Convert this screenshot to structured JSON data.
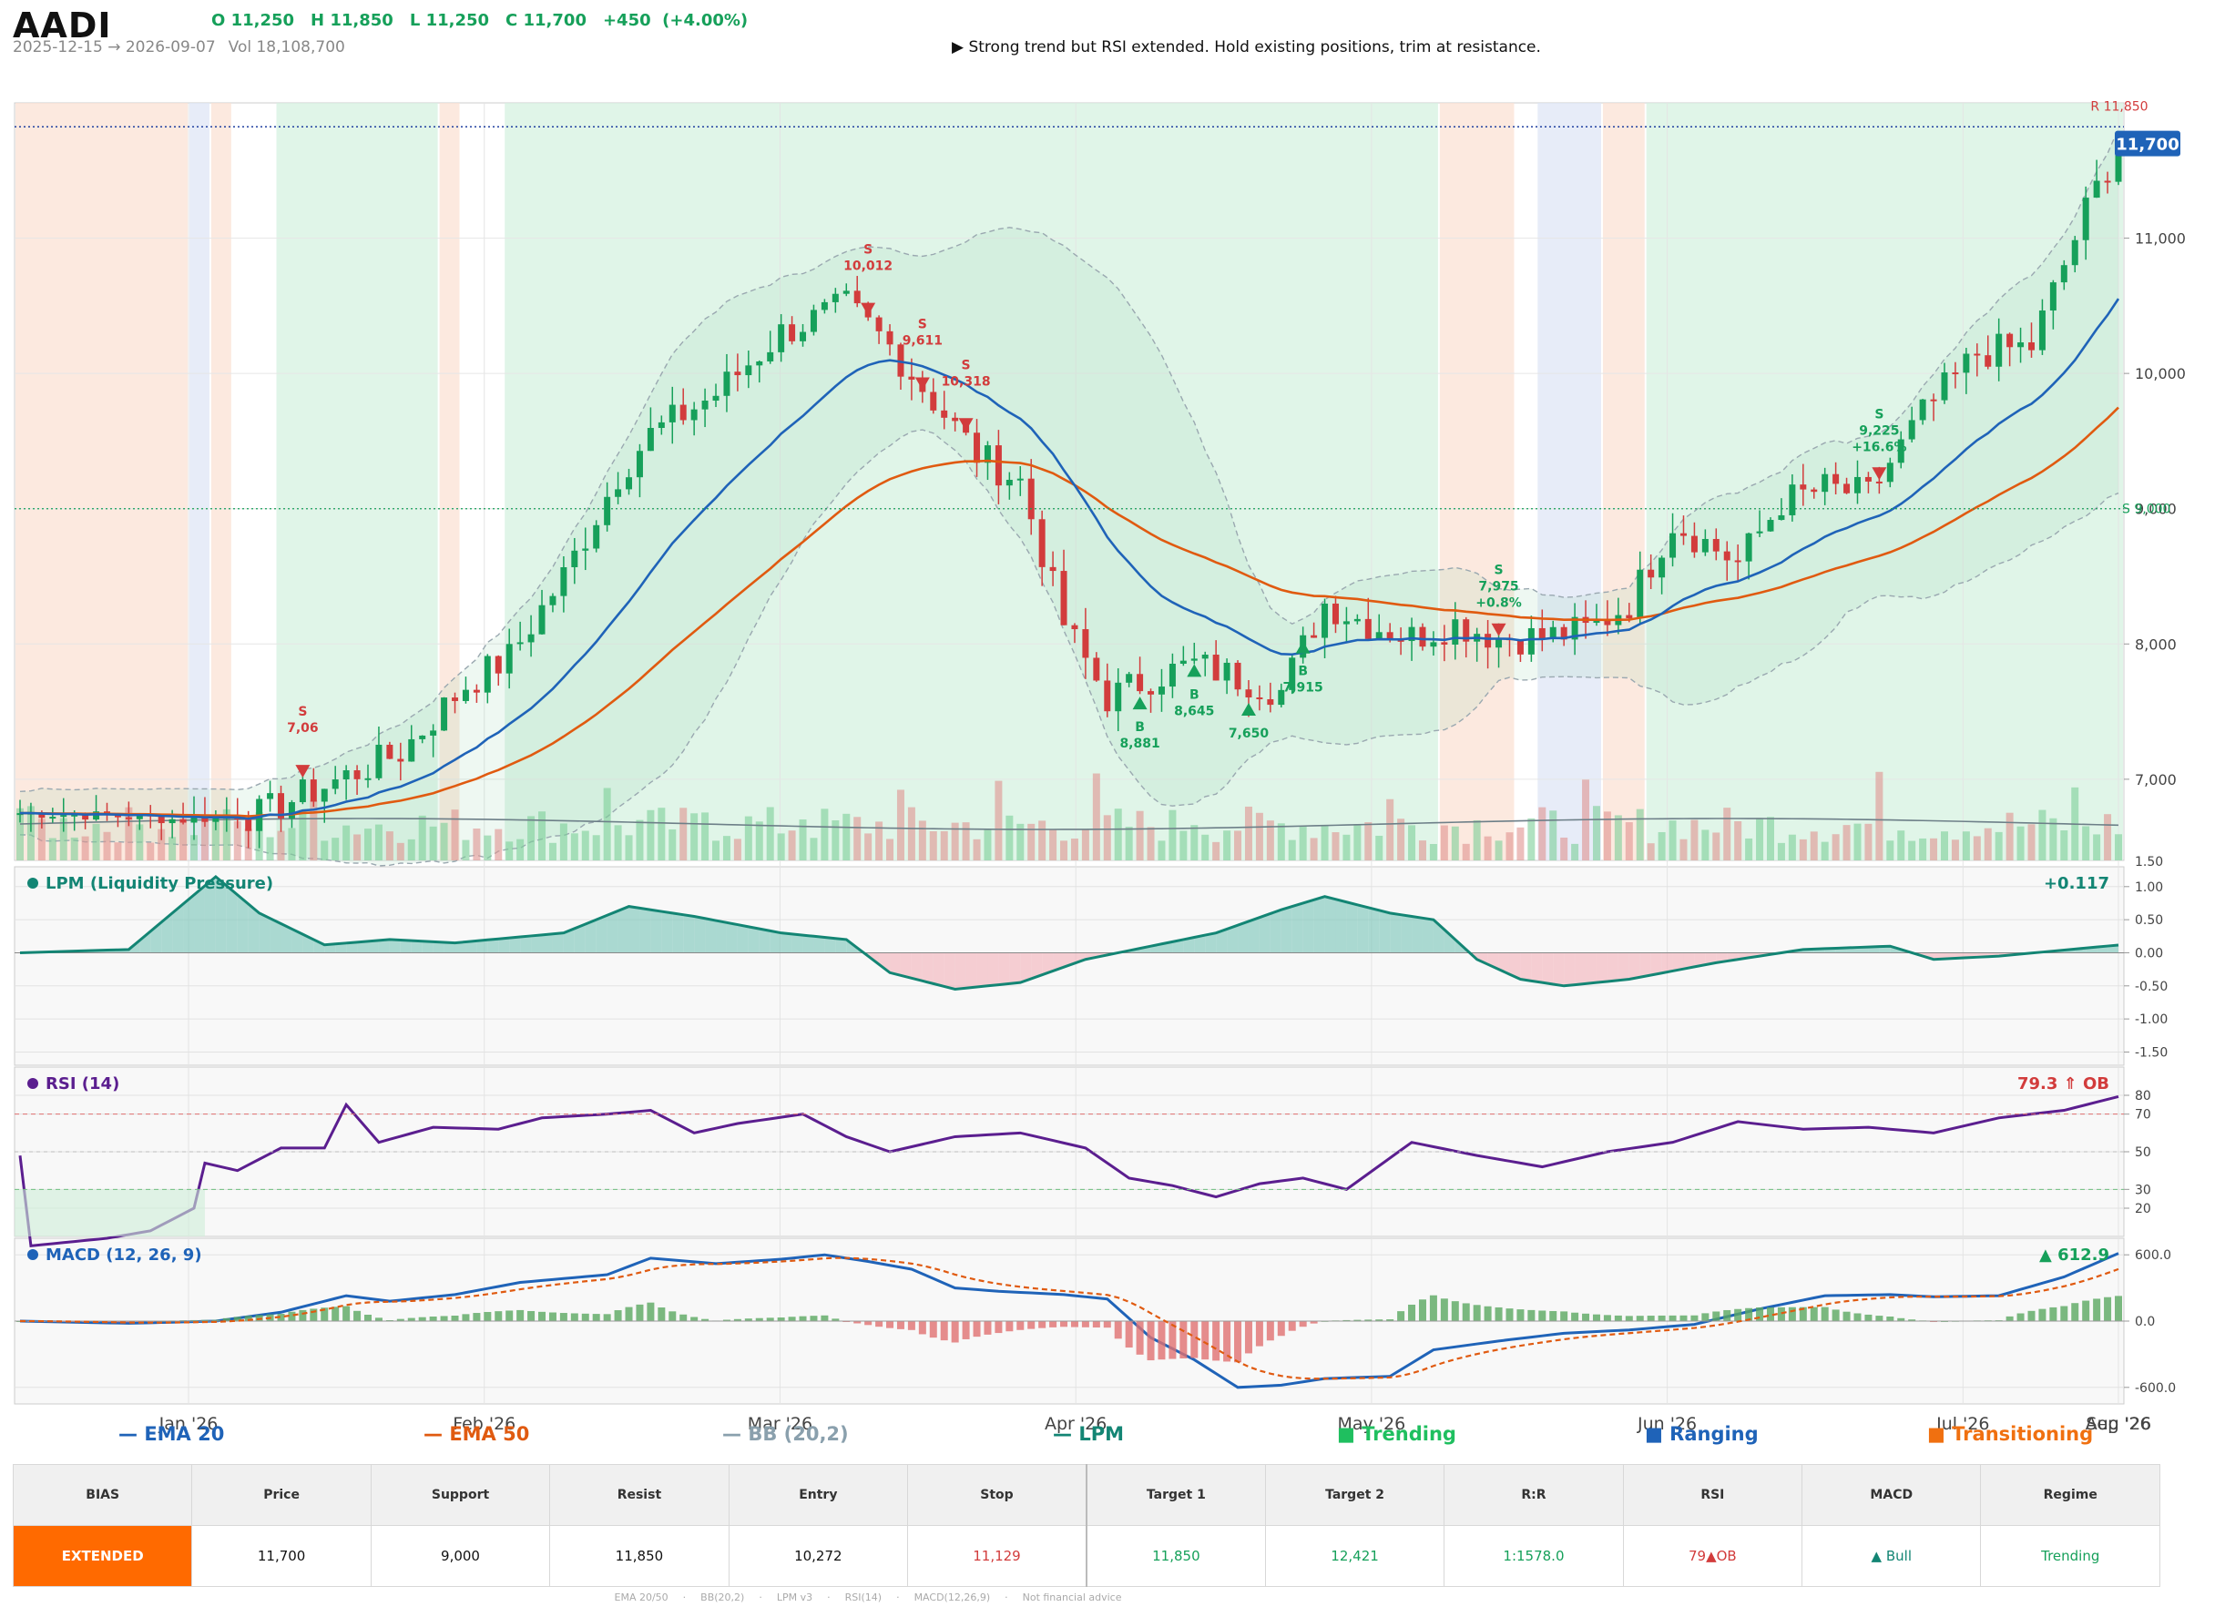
{
  "header": {
    "ticker": "AADI",
    "open": "O 11,250",
    "high": "H 11,850",
    "low": "L 11,250",
    "close": "C 11,700",
    "change": "+450  (+4.00%)",
    "date_range": "2025-12-15 → 2026-09-07",
    "volume": "Vol 18,108,700",
    "note": "▶  Strong trend but RSI extended. Hold existing positions, trim at resistance."
  },
  "colors": {
    "up": "#16a05a",
    "down": "#d23c3c",
    "ema20": "#1f63b8",
    "ema50": "#e05a10",
    "trending": "#d6f2e0",
    "ranging": "#dfe6f5",
    "transitioning": "#fbe2d4",
    "lpm": "#138574",
    "rsi": "#5b1e8f",
    "macd": "#1f63b8",
    "signal": "#e05a10"
  },
  "chart_data": {
    "type": "candlestick",
    "x_ticks": [
      "Jan '26",
      "Feb '26",
      "Mar '26",
      "Apr '26",
      "May '26",
      "Jun '26",
      "Jul '26",
      "Aug '26",
      "Sep '26"
    ],
    "price_ticks": [
      "7,000",
      "8,000",
      "9,000",
      "10,000",
      "11,000"
    ],
    "price_range": [
      6400,
      12000
    ],
    "close_key": [
      [
        0,
        6750
      ],
      [
        8,
        6730
      ],
      [
        15,
        6700
      ],
      [
        22,
        6740
      ],
      [
        28,
        6950
      ],
      [
        35,
        7200
      ],
      [
        41,
        7700
      ],
      [
        45,
        7900
      ],
      [
        50,
        8500
      ],
      [
        55,
        9250
      ],
      [
        58,
        9550
      ],
      [
        64,
        9850
      ],
      [
        70,
        10300
      ],
      [
        76,
        10500
      ],
      [
        80,
        10200
      ],
      [
        88,
        9400
      ],
      [
        92,
        9200
      ],
      [
        96,
        8150
      ],
      [
        100,
        7600
      ],
      [
        104,
        7750
      ],
      [
        108,
        7850
      ],
      [
        112,
        7750
      ],
      [
        116,
        7650
      ],
      [
        120,
        8300
      ],
      [
        124,
        8150
      ],
      [
        128,
        8050
      ],
      [
        132,
        8150
      ],
      [
        136,
        8050
      ],
      [
        140,
        8050
      ],
      [
        144,
        8100
      ],
      [
        148,
        8300
      ],
      [
        152,
        8900
      ],
      [
        158,
        8600
      ],
      [
        162,
        9050
      ],
      [
        166,
        9150
      ],
      [
        170,
        9100
      ],
      [
        175,
        9700
      ],
      [
        180,
        10150
      ],
      [
        185,
        10200
      ],
      [
        190,
        11200
      ],
      [
        193,
        11700
      ]
    ],
    "ema20_label": "EMA 20",
    "ema50_label": "EMA 50",
    "bb_label": "BB (20,2)",
    "lpm_label": "LPM",
    "regime_labels": [
      "Trending",
      "Ranging",
      "Transitioning"
    ],
    "last_price": "11,700",
    "resistance": "R 11,850",
    "support": "S 9,000",
    "signals": [
      {
        "type": "S",
        "text": [
          "S",
          "7,06"
        ],
        "idx": 26
      },
      {
        "type": "S",
        "text": [
          "S",
          "10,012"
        ],
        "idx": 78
      },
      {
        "type": "S",
        "text": [
          "S",
          "10,318"
        ],
        "idx": 87
      },
      {
        "type": "S",
        "text": [
          "S",
          "9,611"
        ],
        "idx": 83
      },
      {
        "type": "B",
        "text": [
          "B",
          "8,881"
        ],
        "idx": 103
      },
      {
        "type": "B",
        "text": [
          "B",
          "8,645"
        ],
        "idx": 108
      },
      {
        "type": "B",
        "text": [
          "7,650"
        ],
        "idx": 113
      },
      {
        "type": "B",
        "text": [
          "B",
          "7,915"
        ],
        "idx": 118
      },
      {
        "type": "S",
        "text": [
          "S",
          "7,975",
          "+0.8%"
        ],
        "idx": 136
      },
      {
        "type": "S",
        "text": [
          "S",
          "9,225",
          "+16.6%"
        ],
        "idx": 171
      }
    ],
    "volume_axis": "1.50",
    "lpm": {
      "title": "LPM (Liquidity Pressure)",
      "value": "+0.117",
      "ticks": [
        "1.00",
        "0.50",
        "0.00",
        "-0.50",
        "-1.00",
        "-1.50"
      ],
      "key": [
        [
          0,
          0
        ],
        [
          10,
          0.05
        ],
        [
          14,
          0.6
        ],
        [
          18,
          1.15
        ],
        [
          22,
          0.6
        ],
        [
          28,
          0.12
        ],
        [
          34,
          0.2
        ],
        [
          40,
          0.15
        ],
        [
          50,
          0.3
        ],
        [
          56,
          0.7
        ],
        [
          62,
          0.55
        ],
        [
          70,
          0.3
        ],
        [
          76,
          0.2
        ],
        [
          80,
          -0.3
        ],
        [
          86,
          -0.55
        ],
        [
          92,
          -0.45
        ],
        [
          98,
          -0.1
        ],
        [
          104,
          0.1
        ],
        [
          110,
          0.3
        ],
        [
          116,
          0.65
        ],
        [
          120,
          0.85
        ],
        [
          126,
          0.6
        ],
        [
          130,
          0.5
        ],
        [
          134,
          -0.1
        ],
        [
          138,
          -0.4
        ],
        [
          142,
          -0.5
        ],
        [
          148,
          -0.4
        ],
        [
          156,
          -0.15
        ],
        [
          164,
          0.05
        ],
        [
          172,
          0.1
        ],
        [
          176,
          -0.1
        ],
        [
          182,
          -0.05
        ],
        [
          193,
          0.117
        ]
      ]
    },
    "rsi": {
      "title": "RSI (14)",
      "value": "79.3 ⇑ OB",
      "ticks": [
        "80",
        "70",
        "50",
        "30",
        "20"
      ],
      "key": [
        [
          0,
          48
        ],
        [
          1,
          0
        ],
        [
          8,
          4
        ],
        [
          12,
          8
        ],
        [
          16,
          20
        ],
        [
          17,
          44
        ],
        [
          20,
          40
        ],
        [
          24,
          52
        ],
        [
          28,
          52
        ],
        [
          30,
          75
        ],
        [
          33,
          55
        ],
        [
          38,
          63
        ],
        [
          44,
          62
        ],
        [
          48,
          68
        ],
        [
          54,
          70
        ],
        [
          58,
          72
        ],
        [
          62,
          60
        ],
        [
          66,
          65
        ],
        [
          72,
          70
        ],
        [
          76,
          58
        ],
        [
          80,
          50
        ],
        [
          86,
          58
        ],
        [
          92,
          60
        ],
        [
          98,
          52
        ],
        [
          102,
          36
        ],
        [
          106,
          32
        ],
        [
          110,
          26
        ],
        [
          114,
          33
        ],
        [
          118,
          36
        ],
        [
          122,
          30
        ],
        [
          128,
          55
        ],
        [
          134,
          48
        ],
        [
          140,
          42
        ],
        [
          146,
          50
        ],
        [
          152,
          55
        ],
        [
          158,
          66
        ],
        [
          164,
          62
        ],
        [
          170,
          63
        ],
        [
          176,
          60
        ],
        [
          182,
          68
        ],
        [
          188,
          72
        ],
        [
          193,
          79.3
        ]
      ]
    },
    "macd": {
      "title": "MACD (12, 26, 9)",
      "value": "▲ 612.9",
      "ticks": [
        "600.0",
        "0.0",
        "-600.0"
      ],
      "key": [
        [
          0,
          0
        ],
        [
          10,
          -20
        ],
        [
          18,
          0
        ],
        [
          24,
          80
        ],
        [
          30,
          230
        ],
        [
          34,
          180
        ],
        [
          40,
          240
        ],
        [
          46,
          350
        ],
        [
          54,
          420
        ],
        [
          58,
          570
        ],
        [
          64,
          520
        ],
        [
          70,
          560
        ],
        [
          74,
          600
        ],
        [
          78,
          540
        ],
        [
          82,
          470
        ],
        [
          86,
          300
        ],
        [
          90,
          270
        ],
        [
          96,
          240
        ],
        [
          100,
          200
        ],
        [
          104,
          -150
        ],
        [
          108,
          -350
        ],
        [
          112,
          -600
        ],
        [
          116,
          -580
        ],
        [
          120,
          -520
        ],
        [
          126,
          -500
        ],
        [
          130,
          -260
        ],
        [
          136,
          -180
        ],
        [
          142,
          -110
        ],
        [
          148,
          -80
        ],
        [
          154,
          -30
        ],
        [
          160,
          110
        ],
        [
          166,
          230
        ],
        [
          172,
          240
        ],
        [
          176,
          220
        ],
        [
          182,
          230
        ],
        [
          188,
          400
        ],
        [
          193,
          612.9
        ]
      ]
    },
    "regimes": [
      [
        0,
        15,
        "transitioning"
      ],
      [
        16,
        17,
        "ranging"
      ],
      [
        18,
        19,
        "transitioning"
      ],
      [
        24,
        38,
        "trending"
      ],
      [
        39,
        40,
        "transitioning"
      ],
      [
        45,
        130,
        "trending"
      ],
      [
        131,
        137,
        "transitioning"
      ],
      [
        140,
        145,
        "ranging"
      ],
      [
        146,
        149,
        "transitioning"
      ],
      [
        150,
        193,
        "trending"
      ]
    ]
  },
  "table": {
    "headers": [
      "BIAS",
      "Price",
      "Support",
      "Resist",
      "Entry",
      "Stop",
      "Target 1",
      "Target 2",
      "R:R",
      "RSI",
      "MACD",
      "Regime"
    ],
    "values": [
      "EXTENDED",
      "11,700",
      "9,000",
      "11,850",
      "10,272",
      "11,129",
      "11,850",
      "12,421",
      "1:1578.0",
      "79▲OB",
      "▲ Bull",
      "Trending"
    ],
    "value_colors": [
      "#ffffff",
      "#111",
      "#111",
      "#111",
      "#111",
      "#d23c3c",
      "#16a05a",
      "#16a05a",
      "#16a05a",
      "#d23c3c",
      "#138574",
      "#16a05a"
    ]
  },
  "footer": [
    "EMA 20/50",
    "BB(20,2)",
    "LPM v3",
    "RSI(14)",
    "MACD(12,26,9)",
    "Not financial advice"
  ]
}
